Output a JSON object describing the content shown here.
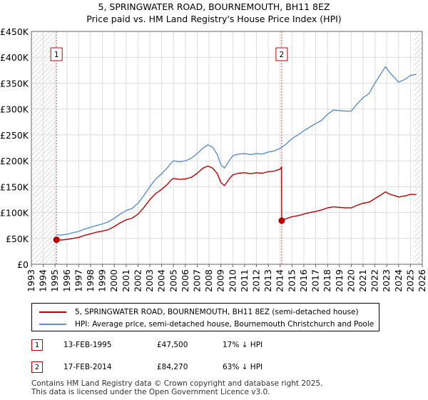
{
  "chart_data": {
    "type": "line",
    "title": "5, SPRINGWATER ROAD, BOURNEMOUTH, BH11 8EZ",
    "subtitle": "Price paid vs. HM Land Registry's House Price Index (HPI)",
    "xlim": [
      1993,
      2026
    ],
    "ylim": [
      0,
      450000
    ],
    "x_ticks": [
      1993,
      1994,
      1995,
      1996,
      1997,
      1998,
      1999,
      2000,
      2001,
      2002,
      2003,
      2004,
      2005,
      2006,
      2007,
      2008,
      2009,
      2010,
      2011,
      2012,
      2013,
      2014,
      2015,
      2016,
      2017,
      2018,
      2019,
      2020,
      2021,
      2022,
      2023,
      2024,
      2025,
      2026
    ],
    "y_ticks": [
      {
        "value": 0,
        "label": "£0"
      },
      {
        "value": 50000,
        "label": "£50K"
      },
      {
        "value": 100000,
        "label": "£100K"
      },
      {
        "value": 150000,
        "label": "£150K"
      },
      {
        "value": 200000,
        "label": "£200K"
      },
      {
        "value": 250000,
        "label": "£250K"
      },
      {
        "value": 300000,
        "label": "£300K"
      },
      {
        "value": 350000,
        "label": "£350K"
      },
      {
        "value": 400000,
        "label": "£400K"
      },
      {
        "value": 450000,
        "label": "£450K"
      }
    ],
    "grid": true,
    "series": [
      {
        "name": "5, SPRINGWATER ROAD, BOURNEMOUTH, BH11 8EZ (semi-detached house)",
        "color": "#c00000",
        "points": [
          [
            1995.12,
            47500
          ],
          [
            1995.5,
            47000
          ],
          [
            1996,
            48000
          ],
          [
            1996.5,
            50000
          ],
          [
            1997,
            52000
          ],
          [
            1997.5,
            56000
          ],
          [
            1998,
            59000
          ],
          [
            1998.5,
            62000
          ],
          [
            1999,
            64000
          ],
          [
            1999.5,
            67000
          ],
          [
            2000,
            73000
          ],
          [
            2000.5,
            80000
          ],
          [
            2001,
            86000
          ],
          [
            2001.5,
            89000
          ],
          [
            2002,
            97000
          ],
          [
            2002.5,
            110000
          ],
          [
            2003,
            125000
          ],
          [
            2003.5,
            137000
          ],
          [
            2004,
            145000
          ],
          [
            2004.5,
            155000
          ],
          [
            2004.8,
            163000
          ],
          [
            2005,
            166000
          ],
          [
            2005.5,
            164000
          ],
          [
            2006,
            165000
          ],
          [
            2006.5,
            168000
          ],
          [
            2007,
            176000
          ],
          [
            2007.5,
            186000
          ],
          [
            2007.9,
            190000
          ],
          [
            2008.3,
            186000
          ],
          [
            2008.7,
            175000
          ],
          [
            2009,
            158000
          ],
          [
            2009.3,
            152000
          ],
          [
            2009.7,
            165000
          ],
          [
            2010,
            173000
          ],
          [
            2010.5,
            176000
          ],
          [
            2011,
            177000
          ],
          [
            2011.5,
            175000
          ],
          [
            2012,
            177000
          ],
          [
            2012.5,
            176000
          ],
          [
            2013,
            179000
          ],
          [
            2013.5,
            180000
          ],
          [
            2014,
            184000
          ],
          [
            2014.12,
            188000
          ],
          [
            2014.13,
            84270
          ],
          [
            2014.5,
            88000
          ],
          [
            2015,
            92000
          ],
          [
            2015.5,
            94000
          ],
          [
            2016,
            97000
          ],
          [
            2016.5,
            100000
          ],
          [
            2017,
            102000
          ],
          [
            2017.5,
            105000
          ],
          [
            2018,
            109000
          ],
          [
            2018.5,
            111000
          ],
          [
            2019,
            110000
          ],
          [
            2019.5,
            109000
          ],
          [
            2020,
            109000
          ],
          [
            2020.5,
            114000
          ],
          [
            2021,
            118000
          ],
          [
            2021.5,
            120000
          ],
          [
            2022,
            127000
          ],
          [
            2022.5,
            134000
          ],
          [
            2022.9,
            140000
          ],
          [
            2023.2,
            136000
          ],
          [
            2023.6,
            133000
          ],
          [
            2024,
            130000
          ],
          [
            2024.5,
            132000
          ],
          [
            2025,
            135000
          ],
          [
            2025.5,
            135000
          ]
        ]
      },
      {
        "name": "HPI: Average price, semi-detached house, Bournemouth Christchurch and Poole",
        "color": "#5b8fd0",
        "points": [
          [
            1995.12,
            57000
          ],
          [
            1995.5,
            56500
          ],
          [
            1996,
            58000
          ],
          [
            1996.5,
            61000
          ],
          [
            1997,
            63500
          ],
          [
            1997.5,
            68000
          ],
          [
            1998,
            71500
          ],
          [
            1998.5,
            75000
          ],
          [
            1999,
            78000
          ],
          [
            1999.5,
            82000
          ],
          [
            2000,
            89000
          ],
          [
            2000.5,
            97000
          ],
          [
            2001,
            104000
          ],
          [
            2001.5,
            108000
          ],
          [
            2002,
            118000
          ],
          [
            2002.5,
            133000
          ],
          [
            2003,
            150000
          ],
          [
            2003.5,
            165000
          ],
          [
            2004,
            175000
          ],
          [
            2004.5,
            187000
          ],
          [
            2004.8,
            196000
          ],
          [
            2005,
            200000
          ],
          [
            2005.5,
            198000
          ],
          [
            2006,
            200000
          ],
          [
            2006.5,
            205000
          ],
          [
            2007,
            214000
          ],
          [
            2007.5,
            225000
          ],
          [
            2007.9,
            231000
          ],
          [
            2008.3,
            226000
          ],
          [
            2008.7,
            212000
          ],
          [
            2009,
            192000
          ],
          [
            2009.3,
            186000
          ],
          [
            2009.7,
            200000
          ],
          [
            2010,
            210000
          ],
          [
            2010.5,
            213000
          ],
          [
            2011,
            214000
          ],
          [
            2011.5,
            212000
          ],
          [
            2012,
            214000
          ],
          [
            2012.5,
            213000
          ],
          [
            2013,
            217000
          ],
          [
            2013.5,
            219000
          ],
          [
            2014,
            224000
          ],
          [
            2014.5,
            232000
          ],
          [
            2015,
            243000
          ],
          [
            2015.5,
            250000
          ],
          [
            2016,
            258000
          ],
          [
            2016.5,
            265000
          ],
          [
            2017,
            272000
          ],
          [
            2017.5,
            278000
          ],
          [
            2018,
            290000
          ],
          [
            2018.5,
            298000
          ],
          [
            2019,
            297000
          ],
          [
            2019.5,
            296000
          ],
          [
            2020,
            296000
          ],
          [
            2020.5,
            310000
          ],
          [
            2021,
            322000
          ],
          [
            2021.5,
            330000
          ],
          [
            2022,
            350000
          ],
          [
            2022.5,
            368000
          ],
          [
            2022.9,
            382000
          ],
          [
            2023.2,
            372000
          ],
          [
            2023.6,
            362000
          ],
          [
            2024,
            352000
          ],
          [
            2024.5,
            357000
          ],
          [
            2025,
            365000
          ],
          [
            2025.5,
            367000
          ]
        ]
      }
    ],
    "sales": [
      {
        "label": "1",
        "x": 1995.12,
        "price": 47500
      },
      {
        "label": "2",
        "x": 2014.13,
        "price": 84270
      }
    ],
    "future_from": 2025.3
  },
  "legend": {
    "property": "5, SPRINGWATER ROAD, BOURNEMOUTH, BH11 8EZ (semi-detached house)",
    "hpi": "HPI: Average price, semi-detached house, Bournemouth Christchurch and Poole"
  },
  "annotations": [
    {
      "num": "1",
      "date": "13-FEB-1995",
      "price": "£47,500",
      "hpi": "17% ↓ HPI"
    },
    {
      "num": "2",
      "date": "17-FEB-2014",
      "price": "£84,270",
      "hpi": "63% ↓ HPI"
    }
  ],
  "footer": {
    "line1": "Contains HM Land Registry data © Crown copyright and database right 2025.",
    "line2": "This data is licensed under the Open Government Licence v3.0."
  },
  "colors": {
    "property": "#c00000",
    "hpi": "#5b8fd0",
    "hatch": "#cccccc"
  }
}
